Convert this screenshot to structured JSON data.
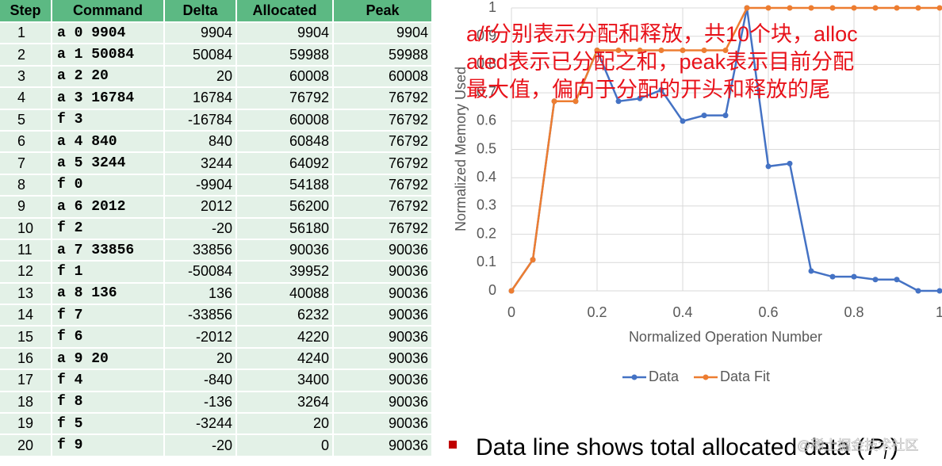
{
  "table": {
    "columns": [
      "Step",
      "Command",
      "Delta",
      "Allocated",
      "Peak"
    ],
    "rows": [
      [
        1,
        "a 0 9904",
        9904,
        9904,
        9904
      ],
      [
        2,
        "a 1 50084",
        50084,
        59988,
        59988
      ],
      [
        3,
        "a 2 20",
        20,
        60008,
        60008
      ],
      [
        4,
        "a 3 16784",
        16784,
        76792,
        76792
      ],
      [
        5,
        "f 3",
        -16784,
        60008,
        76792
      ],
      [
        6,
        "a 4 840",
        840,
        60848,
        76792
      ],
      [
        7,
        "a 5 3244",
        3244,
        64092,
        76792
      ],
      [
        8,
        "f 0",
        -9904,
        54188,
        76792
      ],
      [
        9,
        "a 6 2012",
        2012,
        56200,
        76792
      ],
      [
        10,
        "f 2",
        -20,
        56180,
        76792
      ],
      [
        11,
        "a 7 33856",
        33856,
        90036,
        90036
      ],
      [
        12,
        "f 1",
        -50084,
        39952,
        90036
      ],
      [
        13,
        "a 8 136",
        136,
        40088,
        90036
      ],
      [
        14,
        "f 7",
        -33856,
        6232,
        90036
      ],
      [
        15,
        "f 6",
        -2012,
        4220,
        90036
      ],
      [
        16,
        "a 9 20",
        20,
        4240,
        90036
      ],
      [
        17,
        "f 4",
        -840,
        3400,
        90036
      ],
      [
        18,
        "f 8",
        -136,
        3264,
        90036
      ],
      [
        19,
        "f 5",
        -3244,
        20,
        90036
      ],
      [
        20,
        "f 9",
        -20,
        0,
        90036
      ]
    ]
  },
  "chart_data": {
    "type": "line",
    "x_label": "Normalized Operation Number",
    "y_label": "Normalized Memory Used",
    "x": [
      0,
      0.05,
      0.1,
      0.15,
      0.2,
      0.25,
      0.3,
      0.35,
      0.4,
      0.45,
      0.5,
      0.55,
      0.6,
      0.65,
      0.7,
      0.75,
      0.8,
      0.85,
      0.9,
      0.95,
      1
    ],
    "series": [
      {
        "name": "Data",
        "color": "#4472c4",
        "values": [
          0,
          0.11,
          0.67,
          0.67,
          0.85,
          0.67,
          0.68,
          0.71,
          0.6,
          0.62,
          0.62,
          1,
          0.44,
          0.45,
          0.07,
          0.05,
          0.05,
          0.04,
          0.04,
          0,
          0
        ]
      },
      {
        "name": "Data Fit",
        "color": "#ed7d31",
        "values": [
          0,
          0.11,
          0.67,
          0.67,
          0.85,
          0.85,
          0.85,
          0.85,
          0.85,
          0.85,
          0.85,
          1,
          1,
          1,
          1,
          1,
          1,
          1,
          1,
          1,
          1
        ]
      }
    ],
    "xlim": [
      0,
      1
    ],
    "ylim": [
      0,
      1
    ],
    "xticks": [
      0,
      0.2,
      0.4,
      0.6,
      0.8,
      1
    ],
    "yticks": [
      0,
      0.1,
      0.2,
      0.3,
      0.4,
      0.5,
      0.6,
      0.7,
      0.8,
      0.9,
      1
    ],
    "grid": true,
    "legend": "bottom",
    "annotations": [
      "a/f分别表示分配和释放，共10个块，alloc",
      "ated表示已分配之和，peak表示目前分配",
      "最大值，偏向于分配的开头和释放的尾"
    ]
  },
  "bullet": {
    "text": "Data line shows total allocated data (",
    "symbol": "P",
    "subscript": "i",
    "close": ")"
  },
  "watermark": "@稀土掘金技术社区"
}
